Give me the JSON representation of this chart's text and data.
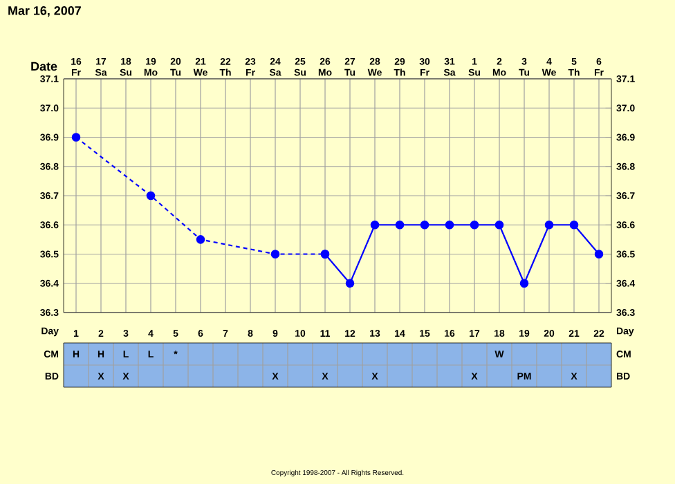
{
  "chart_data": [
    {
      "type": "line",
      "title": "Mar 16, 2007",
      "xlabel": "Date",
      "categories": [
        "16 Fr",
        "17 Sa",
        "18 Su",
        "19 Mo",
        "20 Tu",
        "21 We",
        "22 Th",
        "23 Fr",
        "24 Sa",
        "25 Su",
        "26 Mo",
        "27 Tu",
        "28 We",
        "29 Th",
        "30 Fr",
        "31 Sa",
        "1 Su",
        "2 Mo",
        "3 Tu",
        "4 We",
        "5 Th",
        "6 Fr"
      ],
      "series": [
        {
          "color": "#0000ff",
          "line_style": "dashed",
          "values": [
            36.9,
            null,
            null,
            36.7,
            null,
            36.55,
            null,
            null,
            36.5,
            null,
            36.5,
            null,
            null,
            null,
            null,
            null,
            null,
            null,
            null,
            null,
            null,
            null
          ]
        },
        {
          "color": "#0000ff",
          "line_style": "solid",
          "values": [
            null,
            null,
            null,
            null,
            null,
            null,
            null,
            null,
            null,
            null,
            36.5,
            36.4,
            36.6,
            36.6,
            36.6,
            36.6,
            36.6,
            36.6,
            36.4,
            36.6,
            36.6,
            36.5
          ]
        }
      ],
      "ylim": [
        36.3,
        37.1
      ],
      "yticks": [
        36.3,
        36.4,
        36.5,
        36.6,
        36.7,
        36.8,
        36.9,
        {
          "value": 37,
          "label": "37.0"
        },
        37.1
      ],
      "y2lim": [
        36.3,
        37.1
      ],
      "y2ticks": [
        36.3,
        36.4,
        36.5,
        36.6,
        36.7,
        36.8,
        36.9,
        {
          "value": 37,
          "label": "37.0"
        },
        37.1
      ],
      "grid": true,
      "marker": "circle",
      "annotations": [
        "Copyright 1998-2007 - All Rights Reserved."
      ]
    },
    {
      "type": "heatmap",
      "xlabel": "Day",
      "categories": [
        "1",
        "2",
        "3",
        "4",
        "5",
        "6",
        "7",
        "8",
        "9",
        "10",
        "11",
        "12",
        "13",
        "14",
        "15",
        "16",
        "17",
        "18",
        "19",
        "20",
        "21",
        "22"
      ],
      "y_categories": [
        "CM",
        "BD"
      ],
      "y2_categories": [
        "CM",
        "BD"
      ],
      "cells": [
        [
          null,
          null,
          null,
          null,
          null,
          null,
          null,
          null,
          null,
          null,
          null,
          null,
          null,
          null,
          null,
          null,
          null,
          null,
          null,
          null,
          null,
          null
        ],
        [
          null,
          null,
          null,
          null,
          null,
          null,
          null,
          null,
          null,
          null,
          null,
          null,
          null,
          null,
          null,
          null,
          null,
          null,
          null,
          null,
          null,
          null
        ]
      ],
      "cell_labels": [
        [
          "H",
          "H",
          "L",
          "L",
          "*",
          null,
          null,
          null,
          null,
          null,
          null,
          null,
          null,
          null,
          null,
          null,
          null,
          "W",
          null,
          null,
          null,
          null
        ],
        [
          null,
          "X",
          "X",
          null,
          null,
          null,
          null,
          null,
          "X",
          null,
          "X",
          null,
          "X",
          null,
          null,
          null,
          "X",
          null,
          "PM",
          null,
          "X",
          null
        ]
      ]
    }
  ]
}
